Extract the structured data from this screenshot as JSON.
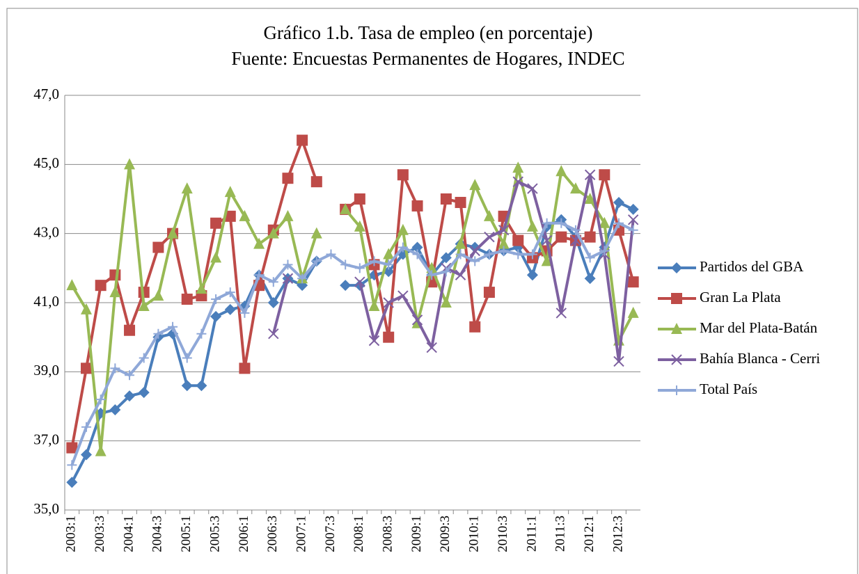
{
  "chart_data": {
    "type": "line",
    "title": "Gráfico 1.b. Tasa de empleo (en porcentaje)",
    "subtitle": "Fuente: Encuestas Permanentes de Hogares, INDEC",
    "categories": [
      "2003:1",
      null,
      "2003:3",
      null,
      "2004:1",
      null,
      "2004:3",
      null,
      "2005:1",
      null,
      "2005:3",
      null,
      "2006:1",
      null,
      "2006:3",
      null,
      "2007:1",
      null,
      "2007:3",
      null,
      "2008:1",
      null,
      "2008:3",
      null,
      "2009:1",
      null,
      "2009:3",
      null,
      "2010:1",
      null,
      "2010:3",
      null,
      "2011:1",
      null,
      "2011:3",
      null,
      "2012:1",
      null,
      "2012:3",
      null
    ],
    "series": [
      {
        "name": "Partidos del GBA",
        "color": "#4a7ebb",
        "values": [
          35.8,
          36.6,
          37.8,
          37.9,
          38.3,
          38.4,
          40.0,
          40.1,
          38.6,
          38.6,
          40.6,
          40.8,
          40.9,
          41.8,
          41.0,
          41.7,
          41.5,
          42.2,
          null,
          41.5,
          41.5,
          41.8,
          41.9,
          42.4,
          42.6,
          41.8,
          42.3,
          42.7,
          42.6,
          42.4,
          42.5,
          42.6,
          41.8,
          43.2,
          43.4,
          42.9,
          41.7,
          42.6,
          43.9,
          43.7
        ]
      },
      {
        "name": "Gran La Plata",
        "color": "#be4b48",
        "values": [
          36.8,
          39.1,
          41.5,
          41.8,
          40.2,
          41.3,
          42.6,
          43.0,
          41.1,
          41.2,
          43.3,
          43.5,
          39.1,
          41.5,
          43.1,
          44.6,
          45.7,
          44.5,
          null,
          43.7,
          44.0,
          42.1,
          40.0,
          44.7,
          43.8,
          41.6,
          44.0,
          43.9,
          40.3,
          41.3,
          43.5,
          42.8,
          42.3,
          42.5,
          42.9,
          42.8,
          42.9,
          44.7,
          43.1,
          41.6
        ]
      },
      {
        "name": "Mar del Plata-Batán",
        "color": "#98b954",
        "values": [
          41.5,
          40.8,
          36.7,
          41.3,
          45.0,
          40.9,
          41.2,
          43.0,
          44.3,
          41.4,
          42.3,
          44.2,
          43.5,
          42.7,
          43.0,
          43.5,
          41.7,
          43.0,
          null,
          43.7,
          43.2,
          40.9,
          42.4,
          43.1,
          40.4,
          42.0,
          41.0,
          42.7,
          44.4,
          43.5,
          42.7,
          44.9,
          43.2,
          42.2,
          44.8,
          44.3,
          44.0,
          43.3,
          39.9,
          40.7
        ]
      },
      {
        "name": "Bahía Blanca - Cerri",
        "color": "#7d60a0",
        "values": [
          null,
          null,
          null,
          null,
          null,
          null,
          null,
          null,
          null,
          null,
          null,
          null,
          null,
          null,
          40.1,
          41.7,
          null,
          null,
          null,
          null,
          41.6,
          39.9,
          41.0,
          41.2,
          40.5,
          39.7,
          42.0,
          41.8,
          42.5,
          42.9,
          43.1,
          44.5,
          44.3,
          42.8,
          40.7,
          42.8,
          44.7,
          42.4,
          39.3,
          43.4
        ]
      },
      {
        "name": "Total País",
        "color": "#8fa8d8",
        "values": [
          36.3,
          37.4,
          38.2,
          39.1,
          38.9,
          39.4,
          40.1,
          40.3,
          39.4,
          40.1,
          41.1,
          41.3,
          40.7,
          41.8,
          41.6,
          42.1,
          41.7,
          42.2,
          42.4,
          42.1,
          42.0,
          42.2,
          42.1,
          42.6,
          42.4,
          41.8,
          41.9,
          42.4,
          42.2,
          42.4,
          42.5,
          42.4,
          42.4,
          43.3,
          43.3,
          43.1,
          42.3,
          42.5,
          43.3,
          43.1
        ]
      }
    ],
    "ylim": [
      35,
      47
    ],
    "yticks": [
      {
        "value": 35,
        "label": "35,0"
      },
      {
        "value": 37,
        "label": "37,0"
      },
      {
        "value": 39,
        "label": "39,0"
      },
      {
        "value": 41,
        "label": "41,0"
      },
      {
        "value": 43,
        "label": "43,0"
      },
      {
        "value": 45,
        "label": "45,0"
      },
      {
        "value": 47,
        "label": "47,0"
      }
    ],
    "grid": true,
    "legend": "right"
  }
}
